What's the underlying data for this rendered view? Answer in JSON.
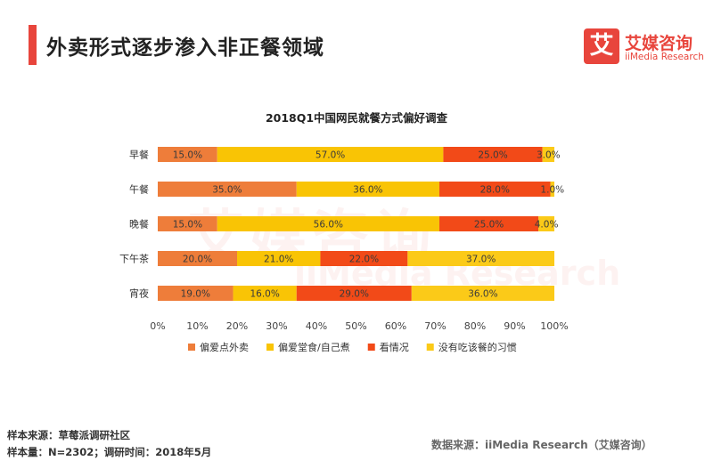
{
  "header": {
    "title": "外卖形式逐步渗入非正餐领域"
  },
  "logo": {
    "badge": "艾",
    "name": "艾媒咨询",
    "sub": "iiMedia Research"
  },
  "watermark": {
    "main": "艾媒咨询",
    "sub": "iiMedia Research"
  },
  "chart_data": {
    "type": "bar",
    "orientation": "horizontal",
    "stacked": true,
    "title": "2018Q1中国网民就餐方式偏好调查",
    "categories": [
      "早餐",
      "午餐",
      "晚餐",
      "下午茶",
      "宵夜"
    ],
    "series": [
      {
        "name": "偏爱点外卖",
        "color": "#ee7d3a",
        "values": [
          15.0,
          35.0,
          15.0,
          20.0,
          19.0
        ]
      },
      {
        "name": "偏爱堂食/自己煮",
        "color": "#f9c405",
        "values": [
          57.0,
          36.0,
          56.0,
          21.0,
          16.0
        ]
      },
      {
        "name": "看情况",
        "color": "#f24a18",
        "values": [
          25.0,
          28.0,
          25.0,
          22.0,
          29.0
        ]
      },
      {
        "name": "没有吃该餐的习惯",
        "color": "#fbca18",
        "values": [
          3.0,
          1.0,
          4.0,
          37.0,
          36.0
        ]
      }
    ],
    "xlim": [
      0,
      100
    ],
    "xticks": [
      "0%",
      "10%",
      "20%",
      "30%",
      "40%",
      "50%",
      "60%",
      "70%",
      "80%",
      "90%",
      "100%"
    ],
    "value_labels": true,
    "value_suffix": "%",
    "legend_position": "bottom",
    "grid": false
  },
  "footer": {
    "sample_source": "样本来源：草莓派调研社区",
    "sample_size": "样本量：N=2302；调研时间：2018年5月",
    "data_source": "数据来源：iiMedia Research（艾媒咨询）"
  }
}
